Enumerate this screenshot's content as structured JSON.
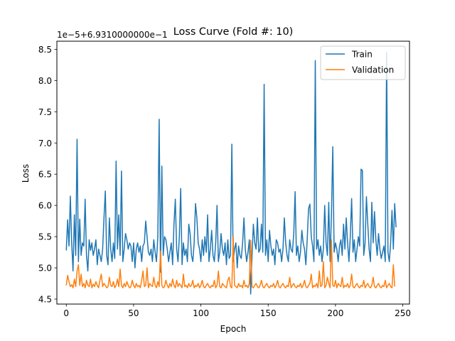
{
  "chart_data": {
    "type": "line",
    "title": "Loss Curve (Fold #: 10)",
    "xlabel": "Epoch",
    "ylabel": "Loss",
    "offset_text": "1e−5+6.9310000000e−1",
    "xlim": [
      -7,
      255
    ],
    "ylim": [
      4.42,
      8.63
    ],
    "xticks": [
      0,
      50,
      100,
      150,
      200,
      250
    ],
    "xtick_labels": [
      "0",
      "50",
      "100",
      "150",
      "200",
      "250"
    ],
    "yticks": [
      4.5,
      5.0,
      5.5,
      6.0,
      6.5,
      7.0,
      7.5,
      8.0,
      8.5
    ],
    "ytick_labels": [
      "4.5",
      "5.0",
      "5.5",
      "6.0",
      "6.5",
      "7.0",
      "7.5",
      "8.0",
      "8.5"
    ],
    "grid": false,
    "legend_position": "top-right",
    "series": [
      {
        "name": "Train",
        "color": "#1f77b4",
        "x_start": 0,
        "values": [
          5.28,
          5.77,
          5.35,
          6.15,
          5.4,
          4.95,
          5.85,
          5.2,
          7.06,
          5.1,
          5.78,
          5.2,
          5.4,
          5.35,
          6.1,
          5.2,
          4.95,
          5.45,
          5.28,
          5.4,
          5.2,
          5.3,
          5.45,
          5.05,
          5.3,
          5.2,
          5.1,
          5.3,
          5.8,
          6.23,
          5.2,
          5.05,
          5.8,
          5.3,
          5.1,
          5.4,
          5.15,
          6.71,
          5.3,
          5.85,
          5.2,
          6.55,
          5.1,
          5.3,
          5.55,
          5.45,
          5.3,
          5.4,
          5.35,
          5.1,
          5.4,
          5.0,
          5.3,
          5.4,
          5.25,
          5.35,
          5.1,
          5.35,
          5.4,
          5.75,
          5.5,
          5.25,
          5.2,
          5.3,
          5.1,
          5.45,
          5.25,
          5.1,
          5.5,
          7.38,
          4.93,
          6.63,
          5.2,
          5.5,
          5.45,
          5.3,
          5.1,
          5.25,
          5.4,
          5.05,
          5.7,
          6.1,
          5.3,
          5.1,
          5.5,
          6.27,
          5.05,
          5.4,
          5.2,
          5.3,
          5.1,
          5.7,
          5.55,
          5.2,
          5.1,
          5.4,
          6.03,
          5.8,
          5.4,
          5.3,
          5.1,
          5.45,
          5.2,
          5.5,
          5.25,
          5.85,
          5.1,
          5.3,
          5.6,
          5.2,
          5.1,
          5.4,
          6.0,
          5.1,
          5.25,
          5.55,
          5.3,
          5.2,
          5.4,
          5.05,
          5.45,
          5.15,
          5.2,
          6.98,
          5.1,
          5.3,
          5.4,
          5.0,
          5.35,
          5.2,
          5.15,
          5.4,
          5.8,
          5.3,
          5.1,
          5.25,
          5.45,
          4.58,
          5.2,
          5.7,
          5.4,
          5.3,
          5.8,
          5.25,
          5.3,
          5.7,
          5.25,
          7.94,
          5.2,
          5.45,
          5.1,
          5.6,
          5.35,
          5.2,
          5.3,
          5.05,
          5.45,
          5.4,
          5.25,
          5.3,
          5.1,
          5.3,
          5.8,
          5.4,
          5.2,
          5.1,
          5.45,
          5.3,
          5.25,
          5.55,
          6.22,
          5.2,
          5.35,
          5.1,
          5.25,
          5.6,
          5.4,
          5.3,
          5.05,
          5.45,
          5.95,
          6.02,
          5.5,
          5.35,
          5.1,
          8.32,
          5.3,
          5.45,
          5.2,
          5.35,
          5.1,
          5.3,
          6.0,
          5.4,
          5.2,
          6.05,
          5.1,
          5.85,
          6.94,
          5.25,
          5.4,
          5.3,
          5.1,
          5.35,
          5.45,
          5.2,
          5.7,
          5.3,
          5.8,
          5.4,
          5.1,
          5.5,
          6.11,
          5.25,
          5.45,
          5.1,
          5.3,
          5.5,
          5.35,
          6.58,
          6.56,
          5.2,
          5.4,
          6.14,
          5.7,
          5.3,
          5.1,
          6.05,
          5.4,
          5.9,
          5.45,
          5.2,
          5.55,
          5.3,
          5.15,
          5.25,
          5.35,
          5.1,
          8.45,
          5.25,
          5.1,
          5.4,
          5.92,
          5.3,
          6.03,
          5.65
        ]
      },
      {
        "name": "Validation",
        "color": "#ff7f0e",
        "x_start": 0,
        "values": [
          4.72,
          4.88,
          4.78,
          4.7,
          4.73,
          4.68,
          4.82,
          4.7,
          4.95,
          5.05,
          4.72,
          4.9,
          4.7,
          4.75,
          4.68,
          4.8,
          4.72,
          4.7,
          4.82,
          4.68,
          4.74,
          4.7,
          4.78,
          4.72,
          4.68,
          4.8,
          4.9,
          4.7,
          4.75,
          4.72,
          4.68,
          4.7,
          4.85,
          4.72,
          4.7,
          4.78,
          4.68,
          4.72,
          4.82,
          4.7,
          4.98,
          4.72,
          4.68,
          4.75,
          4.7,
          4.78,
          4.72,
          4.68,
          4.7,
          4.8,
          4.72,
          4.68,
          4.75,
          4.7,
          4.72,
          4.68,
          4.8,
          4.95,
          4.7,
          4.72,
          5.0,
          4.68,
          4.75,
          4.72,
          4.7,
          4.85,
          4.72,
          4.68,
          4.78,
          4.7,
          5.27,
          4.72,
          4.68,
          4.7,
          4.8,
          4.72,
          4.68,
          4.75,
          4.7,
          4.82,
          4.72,
          4.68,
          4.8,
          4.7,
          4.75,
          4.72,
          4.68,
          4.9,
          4.7,
          4.72,
          4.68,
          4.75,
          4.7,
          4.72,
          4.8,
          4.68,
          4.72,
          4.7,
          4.75,
          4.68,
          4.72,
          4.8,
          4.7,
          4.68,
          4.72,
          4.75,
          4.7,
          4.68,
          4.72,
          4.7,
          4.8,
          4.68,
          4.72,
          4.95,
          4.7,
          4.68,
          4.75,
          4.72,
          4.7,
          4.68,
          4.8,
          4.85,
          4.7,
          4.68,
          5.5,
          4.72,
          4.7,
          4.68,
          4.75,
          4.7,
          4.72,
          4.68,
          4.8,
          4.7,
          4.72,
          4.68,
          4.75,
          5.44,
          4.7,
          4.68,
          4.72,
          4.75,
          4.7,
          4.68,
          4.72,
          4.8,
          4.7,
          4.68,
          4.72,
          4.75,
          4.7,
          4.68,
          4.72,
          4.7,
          4.75,
          4.68,
          4.72,
          4.8,
          4.7,
          4.68,
          4.72,
          4.75,
          4.7,
          4.68,
          4.72,
          4.7,
          4.85,
          4.68,
          4.72,
          4.75,
          4.7,
          4.68,
          4.72,
          4.7,
          4.75,
          4.68,
          4.72,
          4.8,
          4.7,
          4.68,
          4.72,
          4.75,
          4.9,
          4.68,
          4.72,
          4.7,
          4.75,
          4.68,
          4.95,
          4.7,
          4.72,
          5.1,
          4.68,
          4.72,
          4.85,
          4.75,
          4.68,
          5.45,
          4.72,
          4.7,
          4.8,
          4.68,
          4.75,
          4.72,
          4.7,
          4.85,
          4.68,
          4.72,
          4.7,
          4.75,
          4.68,
          4.72,
          4.9,
          4.7,
          4.68,
          4.72,
          4.75,
          4.7,
          4.68,
          4.72,
          4.7,
          4.8,
          4.68,
          4.72,
          4.75,
          4.7,
          4.68,
          4.72,
          4.85,
          4.7,
          4.68,
          4.72,
          4.75,
          4.7,
          4.68,
          4.72,
          4.7,
          4.8,
          4.68,
          4.72,
          4.75,
          4.7,
          4.68,
          5.05,
          4.7
        ]
      }
    ]
  }
}
